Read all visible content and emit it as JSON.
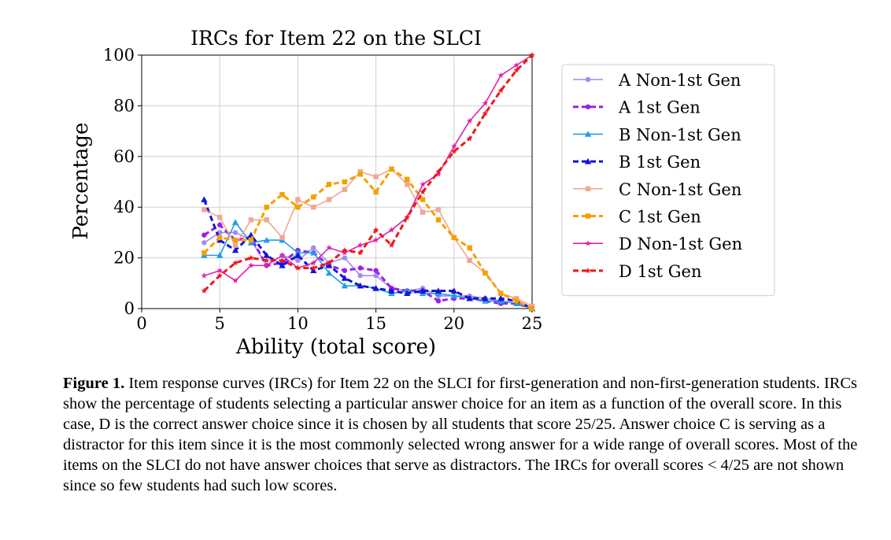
{
  "chart_data": {
    "type": "line",
    "title": "IRCs for Item 22 on the SLCI",
    "xlabel": "Ability (total score)",
    "ylabel": "Percentage",
    "xlim": [
      0,
      25
    ],
    "ylim": [
      0,
      100
    ],
    "xticks": [
      0,
      5,
      10,
      15,
      20,
      25
    ],
    "yticks": [
      0,
      20,
      40,
      60,
      80,
      100
    ],
    "grid": true,
    "legend_position": "right, outside plot",
    "x": [
      4,
      5,
      6,
      7,
      8,
      9,
      10,
      11,
      12,
      13,
      14,
      15,
      16,
      17,
      18,
      19,
      20,
      21,
      22,
      23,
      24,
      25
    ],
    "series": [
      {
        "name": "A Non-1st Gen",
        "color": "#9e8cf0",
        "style": "solid",
        "marker": "circle",
        "values": [
          26,
          30,
          30,
          27,
          17,
          21,
          19,
          24,
          18,
          20,
          13,
          13,
          8,
          7,
          8,
          5,
          5,
          5,
          4,
          3,
          2,
          0
        ]
      },
      {
        "name": "A 1st Gen",
        "color": "#9b1fe8",
        "style": "dashed",
        "marker": "circle",
        "values": [
          29,
          33,
          27,
          28,
          17,
          18,
          23,
          22,
          17,
          15,
          16,
          15,
          8,
          7,
          7,
          3,
          4,
          4,
          3,
          2,
          2,
          0
        ]
      },
      {
        "name": "B Non-1st Gen",
        "color": "#1f9ee8",
        "style": "solid",
        "marker": "triangle",
        "values": [
          21,
          21,
          34,
          26,
          27,
          27,
          22,
          22,
          14,
          9,
          9,
          8,
          6,
          7,
          6,
          6,
          5,
          4,
          3,
          3,
          2,
          0
        ]
      },
      {
        "name": "B 1st Gen",
        "color": "#1414d6",
        "style": "dashed",
        "marker": "triangle",
        "values": [
          43,
          27,
          23,
          29,
          21,
          17,
          21,
          15,
          17,
          12,
          9,
          8,
          7,
          6,
          7,
          7,
          7,
          4,
          4,
          4,
          3,
          0
        ]
      },
      {
        "name": "C Non-1st Gen",
        "color": "#f0a890",
        "style": "solid",
        "marker": "square",
        "values": [
          39,
          36,
          25,
          35,
          35,
          28,
          43,
          40,
          43,
          47,
          54,
          52,
          55,
          49,
          38,
          39,
          28,
          19,
          14,
          6,
          4,
          1
        ]
      },
      {
        "name": "C 1st Gen",
        "color": "#f5a000",
        "style": "dashed",
        "marker": "square",
        "values": [
          22,
          28,
          27,
          27,
          40,
          45,
          40,
          44,
          49,
          50,
          53,
          46,
          55,
          51,
          43,
          35,
          28,
          24,
          14,
          6,
          3,
          0
        ]
      },
      {
        "name": "D Non-1st Gen",
        "color": "#e020b0",
        "style": "solid",
        "marker": "star",
        "values": [
          13,
          15,
          11,
          17,
          17,
          21,
          16,
          18,
          24,
          22,
          25,
          27,
          31,
          36,
          49,
          53,
          64,
          74,
          81,
          92,
          96,
          100
        ]
      },
      {
        "name": "D 1st Gen",
        "color": "#f01818",
        "style": "dashed",
        "marker": "star",
        "values": [
          7,
          13,
          18,
          20,
          19,
          19,
          16,
          16,
          18,
          23,
          22,
          31,
          25,
          36,
          46,
          54,
          62,
          67,
          77,
          86,
          94,
          100
        ]
      }
    ]
  },
  "caption": {
    "label": "Figure 1.",
    "text": " Item response curves (IRCs) for Item 22 on the SLCI for first-generation and non-first-generation students. IRCs show the percentage of students selecting a particular answer choice for an item as a function of the overall score. In this case, D is the correct answer choice since it is chosen by all students that score 25/25. Answer choice C is serving as a distractor for this item since it is the most commonly selected wrong answer for a wide range of overall scores. Most of the items on the SLCI do not have answer choices that serve as distractors. The IRCs for overall scores < 4/25 are not shown since so few students had such low scores."
  }
}
